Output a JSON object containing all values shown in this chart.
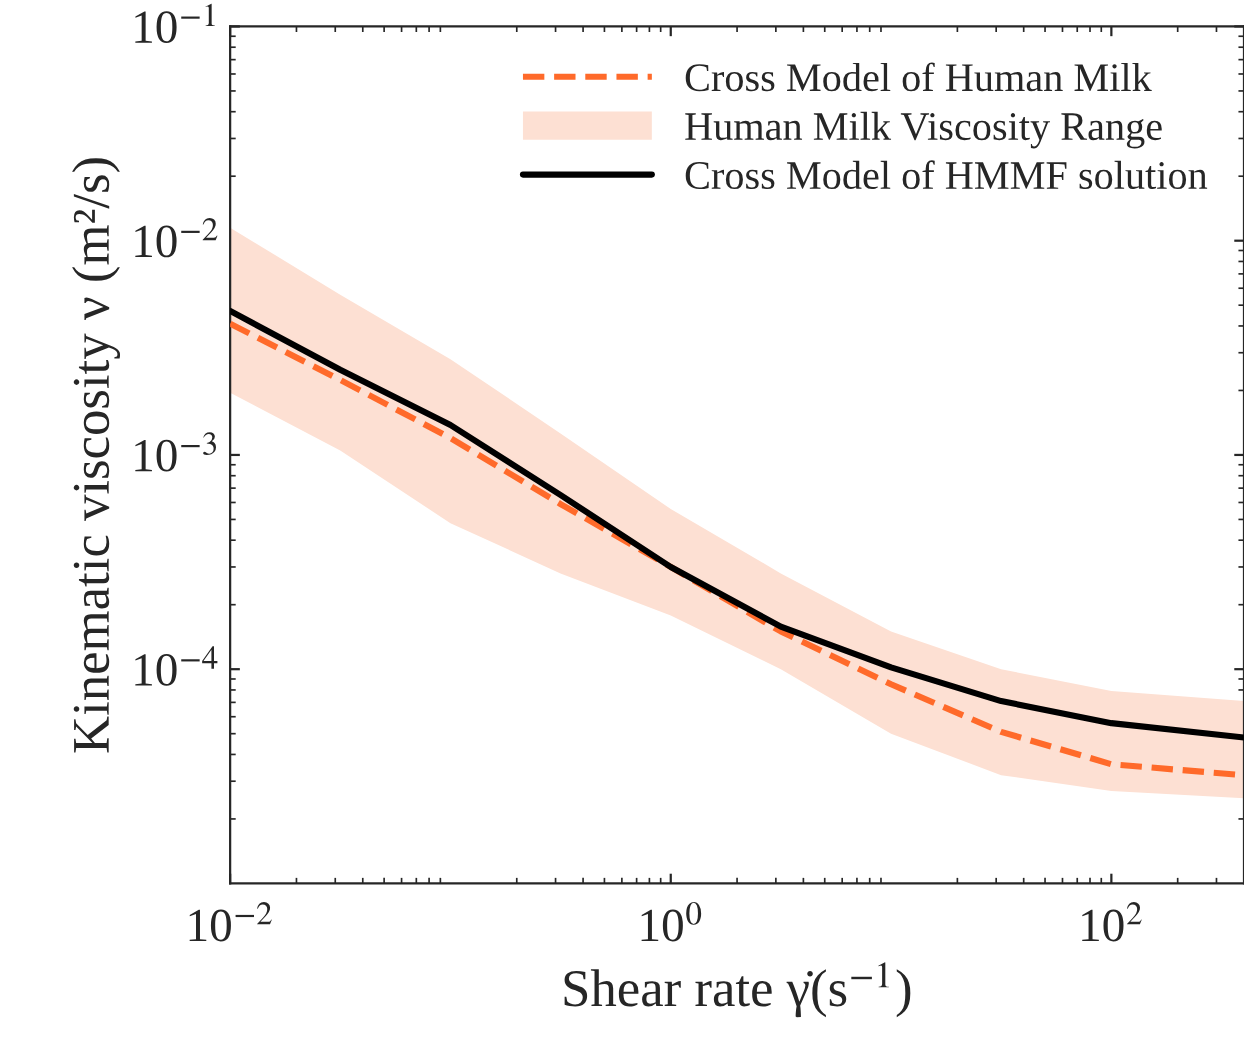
{
  "chart_data": {
    "type": "line",
    "xlabel": "Shear rate γ̇(s$^{−1}$)",
    "ylabel": "Kinematic viscosity ν (m²/s)",
    "log": "xy",
    "grid": false,
    "legend": "top right",
    "xlim": [
      0.01,
      400
    ],
    "ylim": [
      1e-05,
      0.1
    ],
    "xticks": [
      {
        "value": 0.01,
        "label": "10$^{−2}$"
      },
      {
        "value": 1,
        "label": "10$^{0}$"
      },
      {
        "value": 100,
        "label": "10$^{2}$"
      }
    ],
    "yticks": [
      {
        "value": 0.0001,
        "label": "10$^{−4}$"
      },
      {
        "value": 0.001,
        "label": "10$^{−3}$"
      },
      {
        "value": 0.01,
        "label": "10$^{−2}$"
      },
      {
        "value": 0.1,
        "label": "10$^{−1}$"
      }
    ],
    "series": [
      {
        "name": "Cross Model of Human Milk",
        "line_style": "dashed",
        "color": "#ff6a2a",
        "x": [
          0.01,
          0.0316,
          0.1,
          0.316,
          1,
          3.16,
          10,
          31.6,
          100,
          400
        ],
        "values": [
          0.0041,
          0.00224,
          0.0012,
          0.00059,
          0.0003,
          0.00015,
          8.5e-05,
          5.1e-05,
          3.6e-05,
          3.2e-05
        ]
      },
      {
        "name": "Human Milk Viscosity Range",
        "type": "area",
        "color": "#fde0d3",
        "x": [
          0.01,
          0.0316,
          0.1,
          0.316,
          1,
          3.16,
          10,
          31.6,
          100,
          400
        ],
        "values": [
          null,
          null,
          null,
          null,
          null,
          null,
          null,
          null,
          null,
          null
        ],
        "lower": [
          0.00195,
          0.00105,
          0.00048,
          0.00028,
          0.000178,
          0.0001,
          5e-05,
          3.2e-05,
          2.7e-05,
          2.5e-05
        ],
        "upper": [
          0.0115,
          0.0056,
          0.0028,
          0.00126,
          0.00056,
          0.00028,
          0.00015,
          0.0001,
          7.9e-05,
          7.1e-05
        ]
      },
      {
        "name": "Cross Model of HMMF solution",
        "line_style": "solid",
        "color": "#000000",
        "x": [
          0.01,
          0.0316,
          0.1,
          0.316,
          1,
          3.16,
          10,
          31.6,
          100,
          400
        ],
        "values": [
          0.0047,
          0.0025,
          0.00138,
          0.00065,
          0.0003,
          0.000158,
          0.000102,
          7.1e-05,
          5.6e-05,
          4.8e-05
        ]
      }
    ]
  }
}
